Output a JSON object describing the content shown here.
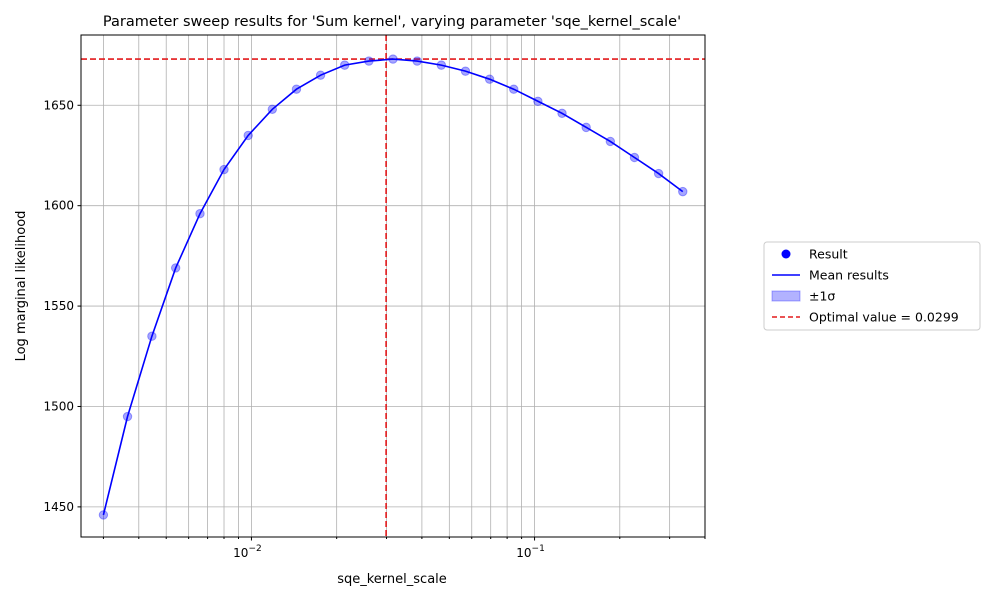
{
  "chart_data": {
    "type": "scatter",
    "title": "Parameter sweep results for 'Sum kernel', varying parameter 'sqe_kernel_scale'",
    "xlabel": "sqe_kernel_scale",
    "ylabel": "Log marginal likelihood",
    "xscale": "log",
    "xlim": [
      0.0025,
      0.4
    ],
    "ylim": [
      1435,
      1685
    ],
    "x_ticks": [
      {
        "value": 0.01,
        "base": "10",
        "exp": "−2"
      },
      {
        "value": 0.1,
        "base": "10",
        "exp": "−1"
      }
    ],
    "y_ticks": [
      1450,
      1500,
      1550,
      1600,
      1650
    ],
    "grid": true,
    "legend_position": "right",
    "x": [
      0.003,
      0.00365,
      0.00445,
      0.0054,
      0.00658,
      0.008,
      0.00974,
      0.01185,
      0.01442,
      0.01755,
      0.02135,
      0.02599,
      0.03162,
      0.03849,
      0.04684,
      0.05701,
      0.06938,
      0.08443,
      0.10275,
      0.12505,
      0.15218,
      0.1852,
      0.22538,
      0.27429,
      0.33381
    ],
    "series": [
      {
        "name": "Result",
        "kind": "points",
        "values": [
          1446,
          1495,
          1535,
          1569,
          1596,
          1618,
          1635,
          1648,
          1658,
          1665,
          1670,
          1672,
          1673,
          1672,
          1670,
          1667,
          1663,
          1658,
          1652,
          1646,
          1639,
          1632,
          1624,
          1616,
          1607
        ]
      },
      {
        "name": "Mean results",
        "kind": "line",
        "values": [
          1446,
          1495,
          1535,
          1569,
          1596,
          1618,
          1635,
          1648,
          1658,
          1665,
          1670,
          1672,
          1673,
          1672,
          1670,
          1667,
          1663,
          1658,
          1652,
          1646,
          1639,
          1632,
          1624,
          1616,
          1607
        ]
      }
    ],
    "optimal_x": 0.0299,
    "optimal_y": 1673,
    "legend": [
      {
        "label": "Result",
        "kind": "marker"
      },
      {
        "label": "Mean results",
        "kind": "line"
      },
      {
        "label": "±1σ",
        "kind": "patch"
      },
      {
        "label": "Optimal value = 0.0299",
        "kind": "dashed"
      }
    ],
    "colors": {
      "points": "#0000ff",
      "line": "#0000ff",
      "band": "#0000ff",
      "optimal": "#e31a1c",
      "grid": "#b0b0b0"
    }
  }
}
